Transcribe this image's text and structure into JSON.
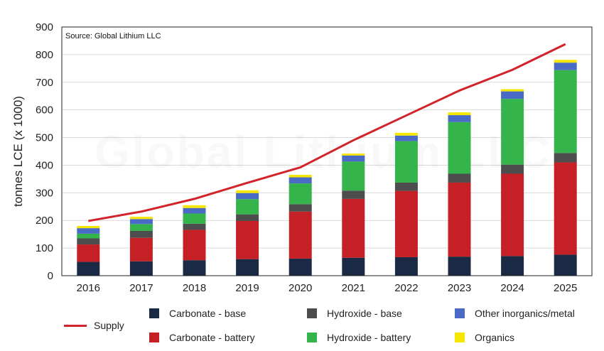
{
  "chart_data": {
    "type": "bar",
    "stacked": true,
    "source_note": "Source: Global Lithium LLC",
    "watermark": "Global Lithium LLC",
    "ylabel": "tonnes LCE (x 1000)",
    "ylim": [
      0,
      900
    ],
    "yticks": [
      0,
      100,
      200,
      300,
      400,
      500,
      600,
      700,
      800,
      900
    ],
    "grid": true,
    "legend_position": "bottom",
    "categories": [
      "2016",
      "2017",
      "2018",
      "2019",
      "2020",
      "2021",
      "2022",
      "2023",
      "2024",
      "2025"
    ],
    "series": [
      {
        "name": "Carbonate - base",
        "color": "#1b2a44",
        "values": [
          50,
          52,
          56,
          60,
          62,
          65,
          67,
          69,
          71,
          76
        ]
      },
      {
        "name": "Carbonate - battery",
        "color": "#c42026",
        "values": [
          63,
          85,
          110,
          138,
          170,
          213,
          240,
          268,
          298,
          334
        ]
      },
      {
        "name": "Hydroxide - base",
        "color": "#4d4d4d",
        "values": [
          22,
          25,
          22,
          24,
          27,
          30,
          30,
          32,
          33,
          34
        ]
      },
      {
        "name": "Hydroxide - battery",
        "color": "#34b44a",
        "values": [
          17,
          25,
          37,
          55,
          75,
          105,
          150,
          187,
          238,
          300
        ]
      },
      {
        "name": "Other inorganics/metal",
        "color": "#4a6bc5",
        "values": [
          20,
          18,
          20,
          22,
          22,
          22,
          20,
          25,
          27,
          27
        ]
      },
      {
        "name": "Organics",
        "color": "#f5e600",
        "values": [
          8,
          8,
          10,
          10,
          9,
          7,
          10,
          10,
          8,
          10
        ]
      }
    ],
    "line_series": {
      "name": "Supply",
      "color": "#d3232a",
      "values": [
        198,
        232,
        278,
        336,
        392,
        490,
        580,
        670,
        745,
        838
      ]
    }
  }
}
